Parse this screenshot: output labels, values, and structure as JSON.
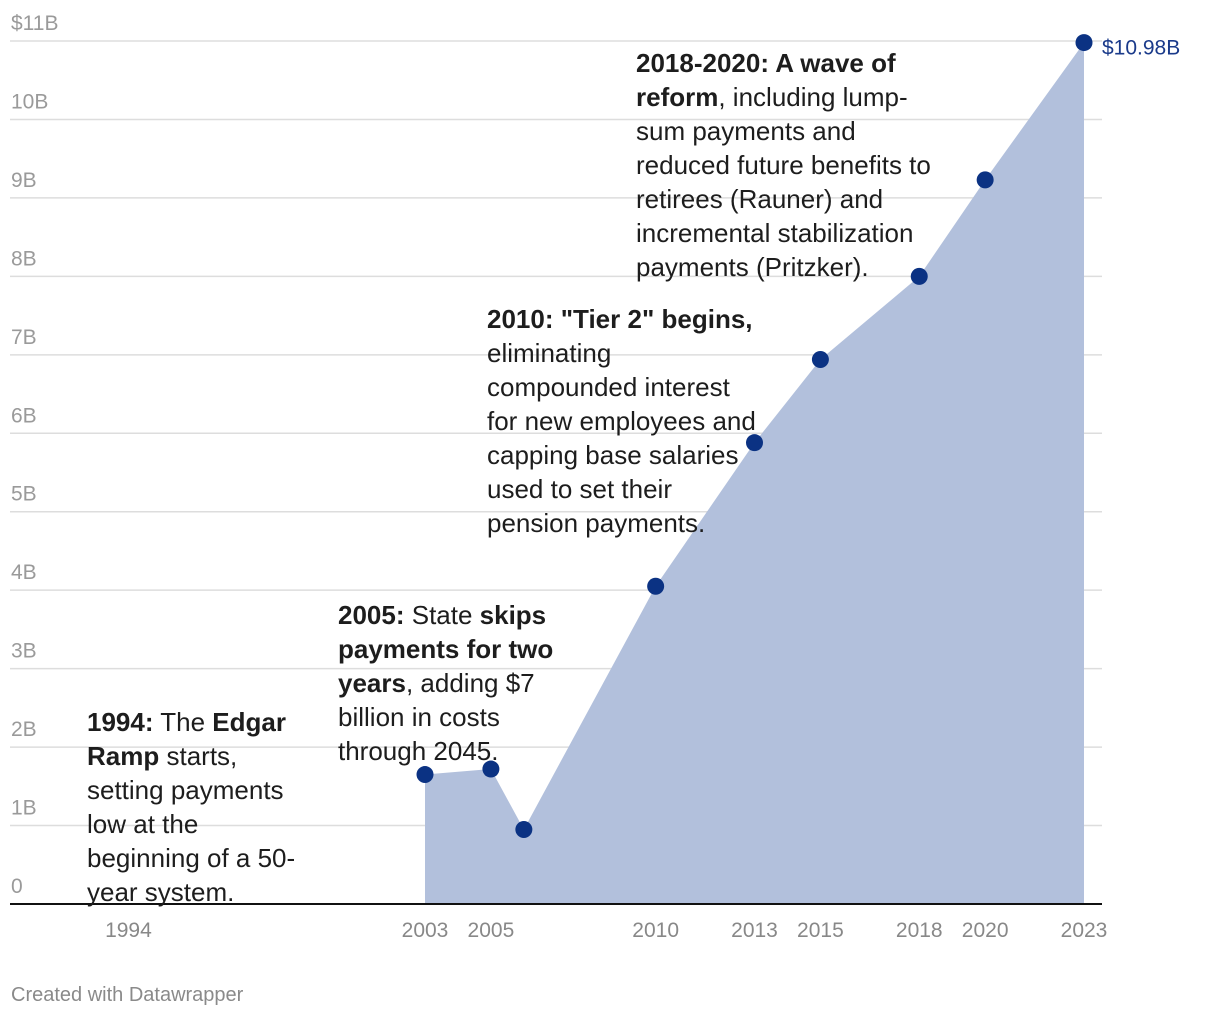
{
  "chart_data": {
    "type": "area",
    "x": [
      2003,
      2005,
      2006,
      2010,
      2013,
      2015,
      2018,
      2020,
      2023
    ],
    "values": [
      1.65,
      1.72,
      0.95,
      4.05,
      5.88,
      6.94,
      8.0,
      9.23,
      10.98
    ],
    "y_unit": "billions of dollars",
    "ylim": [
      0,
      11
    ],
    "xlim": [
      1991,
      2023
    ],
    "y_tick_values": [
      0,
      1,
      2,
      3,
      4,
      5,
      6,
      7,
      8,
      9,
      10,
      11
    ],
    "y_tick_labels": [
      "0",
      "1B",
      "2B",
      "3B",
      "4B",
      "5B",
      "6B",
      "7B",
      "8B",
      "9B",
      "10B",
      "$11B"
    ],
    "x_tick_values": [
      1994,
      2003,
      2005,
      2010,
      2013,
      2015,
      2018,
      2020,
      2023
    ],
    "x_tick_labels": [
      "1994",
      "2003",
      "2005",
      "2010",
      "2013",
      "2015",
      "2018",
      "2020",
      "2023"
    ],
    "end_label": "$10.98B",
    "grid": true,
    "colors": {
      "area": "#b2c0dc",
      "marker": "#0b3283",
      "end_label": "#1a3a8a",
      "grid": "#dddddd",
      "axis": "#111111"
    },
    "annotations": [
      {
        "id": "a1994",
        "parts": [
          {
            "b": true,
            "t": "1994:"
          },
          {
            "b": false,
            "t": " The "
          },
          {
            "b": true,
            "t": "Edgar Ramp"
          },
          {
            "b": false,
            "t": " starts, setting payments low at the beginning of a 50-year system."
          }
        ]
      },
      {
        "id": "a2005",
        "parts": [
          {
            "b": true,
            "t": "2005:"
          },
          {
            "b": false,
            "t": " State "
          },
          {
            "b": true,
            "t": "skips payments for two years"
          },
          {
            "b": false,
            "t": ", adding $7 billion in costs through 2045."
          }
        ]
      },
      {
        "id": "a2010",
        "parts": [
          {
            "b": true,
            "t": "2010: \"Tier 2\" begins,"
          },
          {
            "b": false,
            "t": " eliminating compounded interest for new employees and capping base salaries used to set their pension payments."
          }
        ]
      },
      {
        "id": "a2018",
        "parts": [
          {
            "b": true,
            "t": "2018-2020: A wave of reform"
          },
          {
            "b": false,
            "t": ", including lump-sum payments and reduced future benefits to retirees (Rauner) and incremental stabilization payments (Pritzker)."
          }
        ]
      }
    ]
  },
  "footer": {
    "credit": "Created with Datawrapper"
  }
}
